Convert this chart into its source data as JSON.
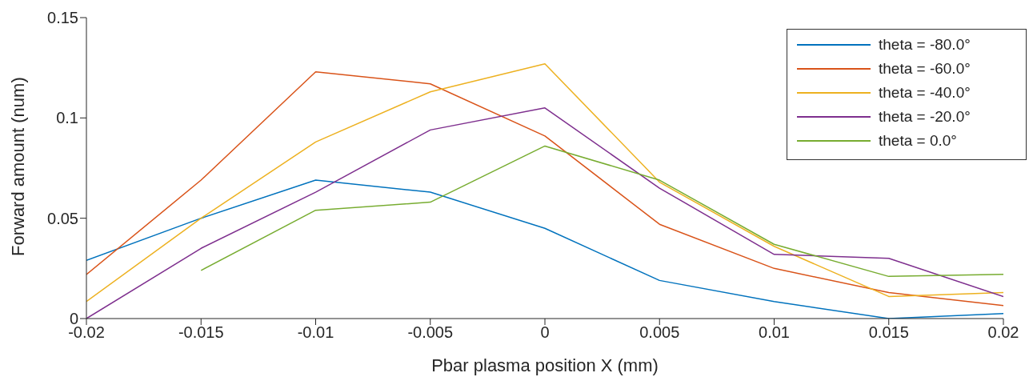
{
  "chart_data": {
    "type": "line",
    "xlabel": "Pbar plasma position X (mm)",
    "ylabel": "Forward amount (num)",
    "x": [
      -0.02,
      -0.015,
      -0.01,
      -0.005,
      0,
      0.005,
      0.01,
      0.015,
      0.02
    ],
    "series": [
      {
        "name": "theta = -80.0°",
        "color": "#0072bd",
        "values": [
          0.029,
          0.05,
          0.069,
          0.063,
          0.045,
          0.019,
          0.0085,
          0,
          0.0025
        ]
      },
      {
        "name": "theta = -60.0°",
        "color": "#d95319",
        "values": [
          0.022,
          0.069,
          0.123,
          0.117,
          0.091,
          0.047,
          0.025,
          0.013,
          0.0065
        ]
      },
      {
        "name": "theta = -40.0°",
        "color": "#edb120",
        "values": [
          0.0085,
          0.05,
          0.088,
          0.113,
          0.127,
          0.068,
          0.036,
          0.011,
          0.013
        ]
      },
      {
        "name": "theta = -20.0°",
        "color": "#7e2f8e",
        "values": [
          0,
          0.035,
          0.063,
          0.094,
          0.105,
          0.065,
          0.032,
          0.03,
          0.011
        ]
      },
      {
        "name": "theta = 0.0°",
        "color": "#77ac30",
        "values": [
          null,
          0.024,
          0.054,
          0.058,
          0.086,
          0.069,
          0.037,
          0.021,
          0.022
        ]
      }
    ],
    "xlim": [
      -0.02,
      0.02
    ],
    "xticks": [
      -0.02,
      -0.015,
      -0.01,
      -0.005,
      0,
      0.005,
      0.01,
      0.015,
      0.02
    ],
    "ylim": [
      0,
      0.15
    ],
    "yticks": [
      0,
      0.05,
      0.1,
      0.15
    ],
    "grid": false,
    "legend": "top right",
    "marker": "none",
    "line_style": "solid"
  }
}
